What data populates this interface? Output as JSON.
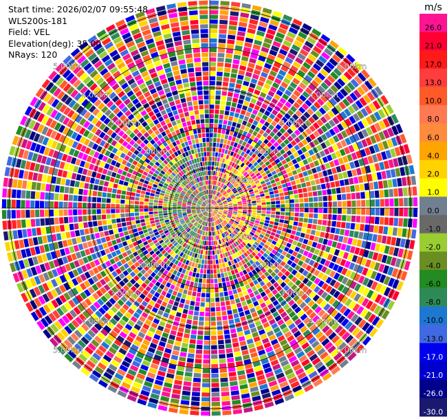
{
  "header": {
    "start_time": "Start time: 2026/02/07 09:55:48",
    "instrument": "WLS200s-181",
    "field": "Field: VEL",
    "elevation": "Elevation(deg): 35.00",
    "nrays": "NRays: 120"
  },
  "chart_data": {
    "type": "heatmap",
    "projection": "polar (PPI)",
    "field": "VEL",
    "units": "m/s",
    "n_rays": 120,
    "range_rings_km": [
      1,
      2,
      3,
      4,
      5
    ],
    "range_ring_labels": [
      "1.00km",
      "2.00km",
      "3.00km",
      "4.00km",
      "5.00km"
    ],
    "colorbar": {
      "title": "m/s",
      "ticks": [
        "26.0",
        "21.0",
        "17.0",
        "13.0",
        "10.0",
        "8.0",
        "6.0",
        "4.0",
        "2.0",
        "1.0",
        "0.0",
        "-1.0",
        "-2.0",
        "-4.0",
        "-6.0",
        "-8.0",
        "-10.0",
        "-13.0",
        "-17.0",
        "-21.0",
        "-26.0",
        "-30.0"
      ],
      "colors": [
        "#ff1493",
        "#ff0033",
        "#ff1a1a",
        "#ff3d3d",
        "#ff5a28",
        "#ff7a52",
        "#ff8c3c",
        "#ffa500",
        "#ffd200",
        "#ffff00",
        "#708090",
        "#696969",
        "#9acd32",
        "#6b8e23",
        "#228b22",
        "#2e8b57",
        "#1e78d2",
        "#4169e1",
        "#0000ee",
        "#0000cd",
        "#00008b",
        "#191970"
      ]
    },
    "ppi_palette": [
      "#ff1493",
      "#ff0033",
      "#ff2424",
      "#ff4040",
      "#ff5a28",
      "#ff7a52",
      "#ffa500",
      "#ffd200",
      "#ffff00",
      "#708090",
      "#9acd32",
      "#6b8e23",
      "#228b22",
      "#2e8b57",
      "#1e78d2",
      "#4169e1",
      "#0000ee",
      "#0000cd",
      "#00008b",
      "#191970",
      "#ff00ff",
      "#c71585"
    ]
  }
}
